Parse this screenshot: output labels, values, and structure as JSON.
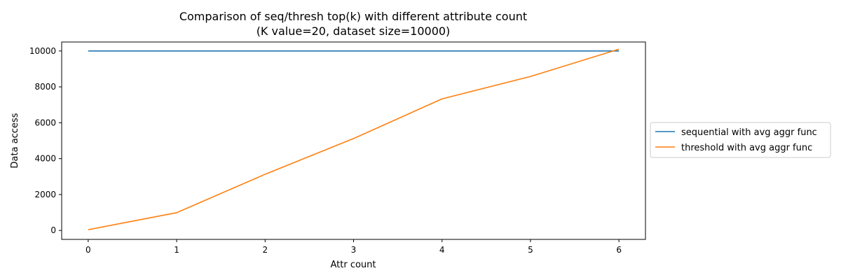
{
  "chart_data": {
    "type": "line",
    "title": [
      "Comparison of seq/thresh top(k) with different attribute count",
      "(K value=20, dataset size=10000)"
    ],
    "xlabel": "Attr count",
    "ylabel": "Data access",
    "x": [
      0,
      1,
      2,
      3,
      4,
      5,
      6
    ],
    "xlim": [
      -0.3,
      6.3
    ],
    "ylim": [
      -500,
      10500
    ],
    "xticks": [
      "0",
      "1",
      "2",
      "3",
      "4",
      "5",
      "6"
    ],
    "yticks": [
      "0",
      "2000",
      "4000",
      "6000",
      "8000",
      "10000"
    ],
    "legend_position": "outside-right",
    "grid": false,
    "series": [
      {
        "name": "sequential with avg aggr func",
        "color": "#1f77b4",
        "values": [
          10000,
          10000,
          10000,
          10000,
          10000,
          10000,
          10000
        ]
      },
      {
        "name": "threshold with avg aggr func",
        "color": "#ff7f0e",
        "values": [
          40,
          990,
          3130,
          5120,
          7330,
          8580,
          10100
        ]
      }
    ]
  }
}
